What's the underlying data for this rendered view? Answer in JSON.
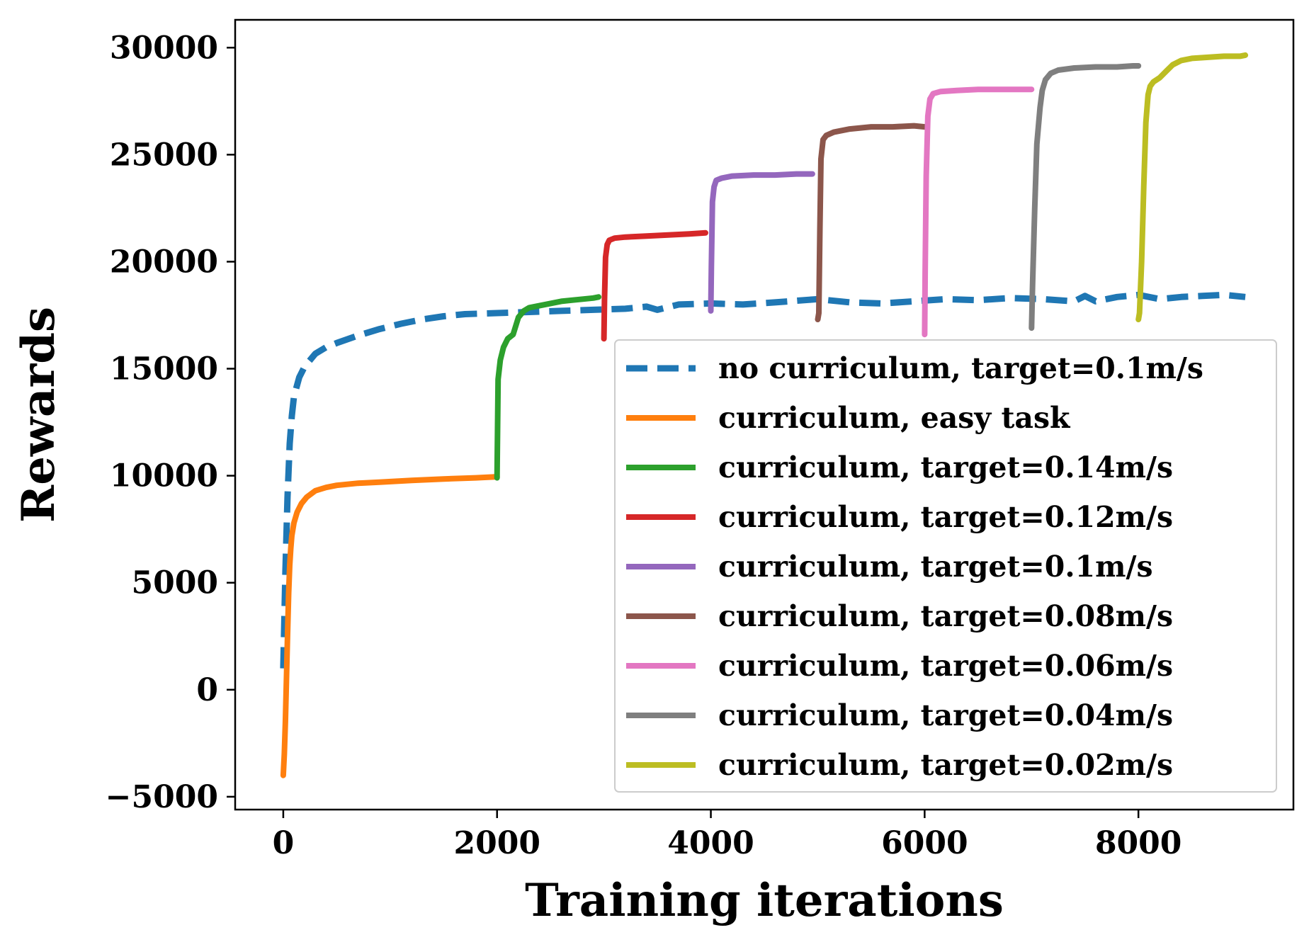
{
  "chart_data": {
    "type": "line",
    "xlabel": "Training iterations",
    "ylabel": "Rewards",
    "xlim": [
      -450,
      9450
    ],
    "ylim": [
      -5600,
      31300
    ],
    "xticks": [
      0,
      2000,
      4000,
      6000,
      8000
    ],
    "xtick_labels": [
      "0",
      "2000",
      "4000",
      "6000",
      "8000"
    ],
    "yticks": [
      -5000,
      0,
      5000,
      10000,
      15000,
      20000,
      25000,
      30000
    ],
    "ytick_labels": [
      "−5000",
      "0",
      "5000",
      "10000",
      "15000",
      "20000",
      "25000",
      "30000"
    ],
    "grid": false,
    "legend_position": "lower-right",
    "series": [
      {
        "name": "no curriculum, target=0.1m/s",
        "color": "#1f77b4",
        "style": "dashed",
        "x": [
          0,
          20,
          40,
          60,
          80,
          100,
          150,
          200,
          300,
          400,
          500,
          700,
          900,
          1100,
          1300,
          1500,
          1700,
          2000,
          2300,
          2600,
          2900,
          3200,
          3400,
          3500,
          3700,
          4000,
          4300,
          4600,
          5000,
          5300,
          5600,
          5900,
          6200,
          6500,
          6800,
          7100,
          7400,
          7500,
          7600,
          7800,
          8000,
          8200,
          8400,
          8600,
          8800,
          9000
        ],
        "y": [
          1000,
          5500,
          9000,
          11500,
          12800,
          13700,
          14600,
          15100,
          15700,
          16000,
          16200,
          16550,
          16850,
          17100,
          17300,
          17450,
          17550,
          17600,
          17650,
          17700,
          17750,
          17800,
          17900,
          17750,
          18000,
          18050,
          18000,
          18100,
          18250,
          18100,
          18050,
          18150,
          18250,
          18200,
          18300,
          18250,
          18150,
          18400,
          18150,
          18350,
          18450,
          18250,
          18350,
          18400,
          18450,
          18350
        ]
      },
      {
        "name": "curriculum, easy task",
        "color": "#ff7f0e",
        "style": "solid",
        "x": [
          0,
          10,
          20,
          30,
          40,
          50,
          60,
          70,
          80,
          100,
          130,
          170,
          220,
          300,
          400,
          500,
          700,
          900,
          1200,
          1500,
          1800,
          2000
        ],
        "y": [
          -4000,
          -3000,
          -1500,
          500,
          2500,
          4500,
          5800,
          6600,
          7200,
          7800,
          8300,
          8700,
          9000,
          9300,
          9450,
          9550,
          9650,
          9700,
          9780,
          9850,
          9900,
          9950
        ]
      },
      {
        "name": "curriculum, target=0.14m/s",
        "color": "#2ca02c",
        "style": "solid",
        "x": [
          2000,
          2010,
          2030,
          2060,
          2100,
          2150,
          2200,
          2250,
          2300,
          2400,
          2500,
          2600,
          2700,
          2800,
          2900,
          2950
        ],
        "y": [
          9900,
          14500,
          15400,
          16000,
          16400,
          16600,
          17400,
          17700,
          17850,
          17950,
          18050,
          18150,
          18200,
          18250,
          18300,
          18350
        ]
      },
      {
        "name": "curriculum, target=0.12m/s",
        "color": "#d62728",
        "style": "solid",
        "x": [
          3000,
          3005,
          3015,
          3030,
          3050,
          3100,
          3200,
          3400,
          3600,
          3800,
          3950
        ],
        "y": [
          16400,
          18200,
          20200,
          20800,
          21000,
          21100,
          21150,
          21200,
          21250,
          21300,
          21350
        ]
      },
      {
        "name": "curriculum, target=0.1m/s",
        "color": "#9467bd",
        "style": "solid",
        "x": [
          4000,
          4005,
          4015,
          4030,
          4050,
          4100,
          4200,
          4400,
          4600,
          4800,
          4950
        ],
        "y": [
          17700,
          19800,
          22800,
          23500,
          23800,
          23900,
          24000,
          24050,
          24050,
          24100,
          24100
        ]
      },
      {
        "name": "curriculum, target=0.08m/s",
        "color": "#8c564b",
        "style": "solid",
        "x": [
          5000,
          5010,
          5020,
          5030,
          5050,
          5080,
          5150,
          5300,
          5500,
          5700,
          5900,
          6000
        ],
        "y": [
          17300,
          17600,
          21500,
          24800,
          25700,
          25900,
          26050,
          26200,
          26300,
          26300,
          26350,
          26300
        ]
      },
      {
        "name": "curriculum, target=0.06m/s",
        "color": "#e377c2",
        "style": "solid",
        "x": [
          6000,
          6005,
          6015,
          6030,
          6050,
          6080,
          6150,
          6300,
          6500,
          6700,
          6900,
          7000
        ],
        "y": [
          16600,
          19500,
          24000,
          26800,
          27600,
          27850,
          27950,
          28000,
          28050,
          28050,
          28050,
          28050
        ]
      },
      {
        "name": "curriculum, target=0.04m/s",
        "color": "#7f7f7f",
        "style": "solid",
        "x": [
          7000,
          7010,
          7030,
          7050,
          7080,
          7100,
          7130,
          7180,
          7250,
          7400,
          7600,
          7800,
          7950,
          8000
        ],
        "y": [
          16900,
          19000,
          22500,
          25500,
          27200,
          28000,
          28500,
          28800,
          28950,
          29050,
          29100,
          29100,
          29150,
          29150
        ]
      },
      {
        "name": "curriculum, target=0.02m/s",
        "color": "#bcbd22",
        "style": "solid",
        "x": [
          8000,
          8010,
          8030,
          8050,
          8070,
          8090,
          8110,
          8140,
          8200,
          8260,
          8320,
          8400,
          8500,
          8650,
          8800,
          8950,
          9000
        ],
        "y": [
          17300,
          17600,
          20000,
          23500,
          26500,
          27800,
          28200,
          28400,
          28600,
          28900,
          29200,
          29400,
          29500,
          29550,
          29600,
          29600,
          29650
        ]
      }
    ]
  }
}
